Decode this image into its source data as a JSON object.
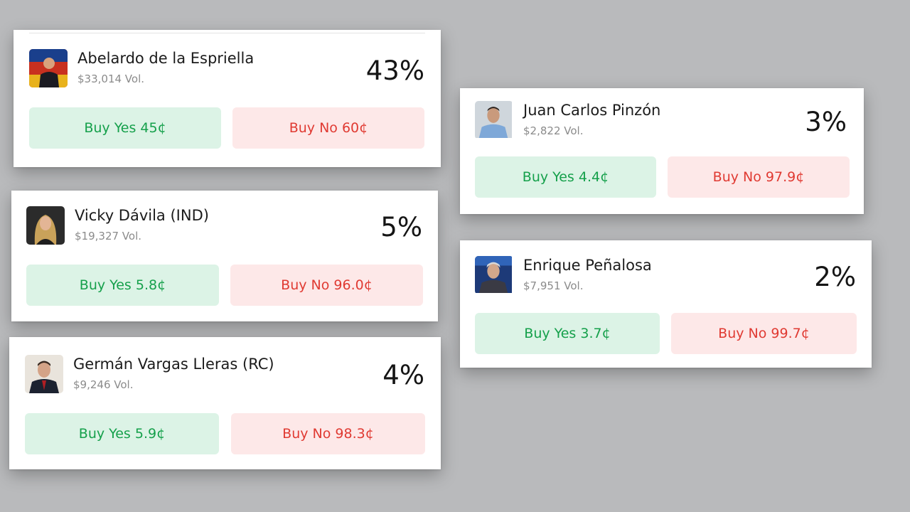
{
  "markets": [
    {
      "name": "Abelardo de la Espriella",
      "volume": "$33,014 Vol.",
      "percent": "43%",
      "yes_label": "Buy Yes 45¢",
      "no_label": "Buy No 60¢"
    },
    {
      "name": "Vicky Dávila (IND)",
      "volume": "$19,327 Vol.",
      "percent": "5%",
      "yes_label": "Buy Yes 5.8¢",
      "no_label": "Buy No 96.0¢"
    },
    {
      "name": "Germán Vargas Lleras (RC)",
      "volume": "$9,246 Vol.",
      "percent": "4%",
      "yes_label": "Buy Yes 5.9¢",
      "no_label": "Buy No 98.3¢"
    },
    {
      "name": "Juan Carlos Pinzón",
      "volume": "$2,822 Vol.",
      "percent": "3%",
      "yes_label": "Buy Yes 4.4¢",
      "no_label": "Buy No 97.9¢"
    },
    {
      "name": "Enrique Peñalosa",
      "volume": "$7,951 Vol.",
      "percent": "2%",
      "yes_label": "Buy Yes 3.7¢",
      "no_label": "Buy No 99.7¢"
    }
  ],
  "colors": {
    "background": "#b9babc",
    "yes_bg": "#dcf3e6",
    "yes_text": "#15a04b",
    "no_bg": "#fde8e8",
    "no_text": "#e03a32"
  }
}
